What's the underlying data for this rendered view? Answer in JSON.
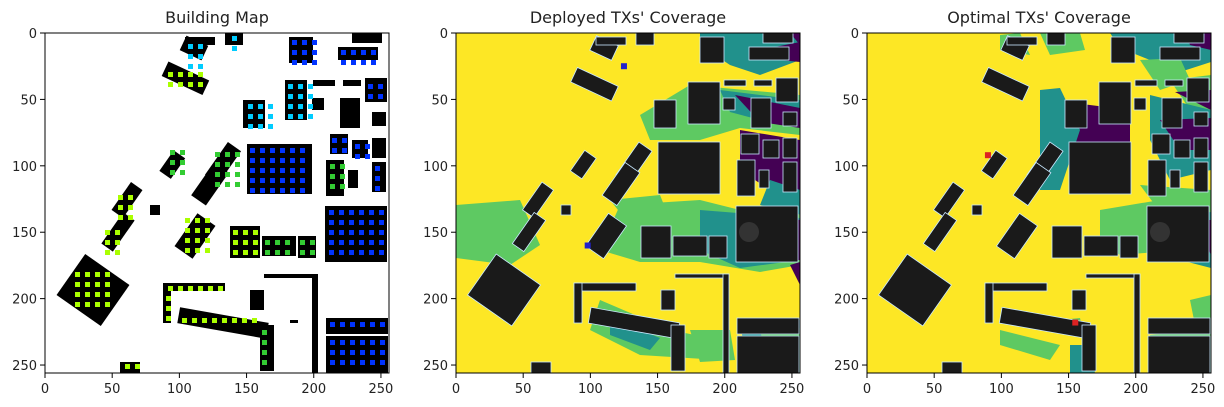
{
  "chart_data": [
    {
      "type": "heatmap",
      "title": "Building Map",
      "xlim": [
        0,
        256
      ],
      "ylim": [
        256,
        0
      ],
      "x_ticks": [
        0,
        50,
        100,
        150,
        200,
        250
      ],
      "y_ticks": [
        0,
        50,
        100,
        150,
        200,
        250
      ],
      "colors": {
        "background": "#ffffff",
        "building": "#000000",
        "marker_low": "#aaff00",
        "marker_mid": "#33cc33",
        "marker_high": "#0033ff",
        "marker_alt": "#00ccff"
      }
    },
    {
      "type": "heatmap",
      "title": "Deployed TXs' Coverage",
      "xlim": [
        0,
        256
      ],
      "ylim": [
        256,
        0
      ],
      "x_ticks": [
        0,
        50,
        100,
        150,
        200,
        250
      ],
      "y_ticks": [
        0,
        50,
        100,
        150,
        200,
        250
      ],
      "tx_markers": [
        [
          125,
          25
        ],
        [
          98,
          160
        ]
      ],
      "colors": {
        "covered": "#fde725",
        "partial": "#5ec962",
        "weak": "#21918c",
        "none": "#440154",
        "building": "#1a1a1a",
        "tx": "#2222cc"
      }
    },
    {
      "type": "heatmap",
      "title": "Optimal TXs' Coverage",
      "xlim": [
        0,
        256
      ],
      "ylim": [
        256,
        0
      ],
      "x_ticks": [
        0,
        50,
        100,
        150,
        200,
        250
      ],
      "y_ticks": [
        0,
        50,
        100,
        150,
        200,
        250
      ],
      "tx_markers": [
        [
          90,
          92
        ],
        [
          155,
          218
        ]
      ],
      "colors": {
        "covered": "#fde725",
        "partial": "#5ec962",
        "weak": "#21918c",
        "none": "#440154",
        "building": "#1a1a1a",
        "tx": "#dd2222"
      }
    }
  ]
}
